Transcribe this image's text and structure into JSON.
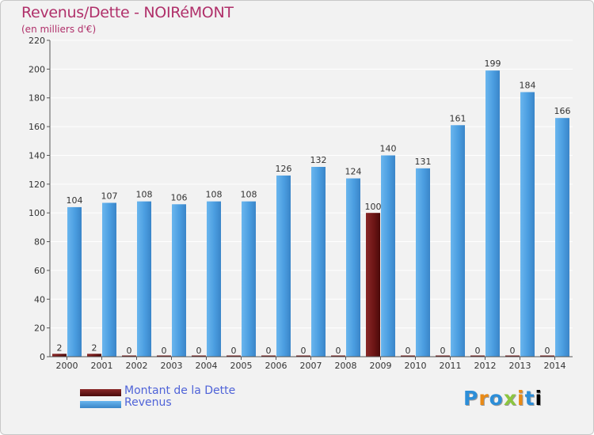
{
  "header": {
    "title": "Revenus/Dette - NOIRéMONT",
    "subtitle": "(en milliers d'€)"
  },
  "legend": {
    "debt_label": "Montant de la Dette",
    "revenue_label": "Revenus"
  },
  "logo": {
    "letters": [
      "P",
      "r",
      "o",
      "x",
      "i",
      "t",
      "i"
    ]
  },
  "colors": {
    "title": "#b0306a",
    "revenue_bar": "#4a9de0",
    "revenue_bar_light": "#6ab6ee",
    "debt_bar": "#7a1c1c",
    "debt_bar_dark": "#4a0a0a",
    "legend_text": "#4f63d8"
  },
  "chart_data": {
    "type": "bar",
    "title": "Revenus/Dette - NOIRéMONT",
    "ylabel": "(en milliers d'€)",
    "xlabel": "",
    "ylim": [
      0,
      220
    ],
    "yticks": [
      0,
      20,
      40,
      60,
      80,
      100,
      120,
      140,
      160,
      180,
      200,
      220
    ],
    "grid": true,
    "legend_position": "bottom-left",
    "categories": [
      "2000",
      "2001",
      "2002",
      "2003",
      "2004",
      "2005",
      "2006",
      "2007",
      "2008",
      "2009",
      "2010",
      "2011",
      "2012",
      "2013",
      "2014"
    ],
    "series": [
      {
        "name": "Montant de la Dette",
        "values": [
          2,
          2,
          0,
          0,
          0,
          0,
          0,
          0,
          0,
          100,
          0,
          0,
          0,
          0,
          0
        ]
      },
      {
        "name": "Revenus",
        "values": [
          104,
          107,
          108,
          106,
          108,
          108,
          126,
          132,
          124,
          140,
          131,
          161,
          199,
          184,
          166
        ]
      }
    ]
  }
}
